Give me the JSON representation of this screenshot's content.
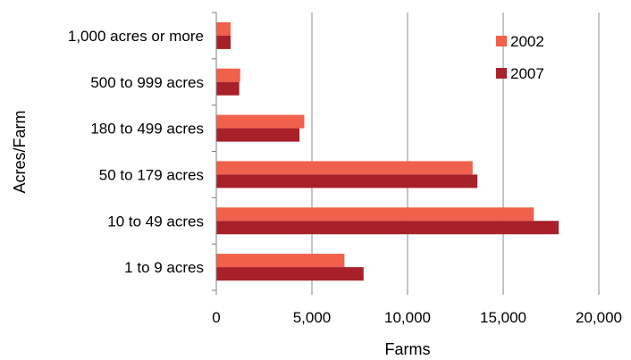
{
  "chart_data": {
    "type": "bar",
    "orientation": "horizontal",
    "title": "",
    "xlabel": "Farms",
    "ylabel": "Acres/Farm",
    "categories": [
      "1,000 acres or more",
      "500 to 999 acres",
      "180 to 499 acres",
      "50 to 179 acres",
      "10 to 49 acres",
      "1 to 9 acres"
    ],
    "series": [
      {
        "name": "2002",
        "color": "#f0604a",
        "values": [
          750,
          1250,
          4600,
          13400,
          16600,
          6700
        ]
      },
      {
        "name": "2007",
        "color": "#a8202a",
        "values": [
          750,
          1200,
          4350,
          13650,
          17900,
          7700
        ]
      }
    ],
    "xlim": [
      0,
      20000
    ],
    "xticks": [
      0,
      5000,
      10000,
      15000,
      20000
    ],
    "xtick_labels": [
      "0",
      "5,000",
      "10,000",
      "15,000",
      "20,000"
    ],
    "grid": "vertical",
    "legend_position": "top-right"
  }
}
